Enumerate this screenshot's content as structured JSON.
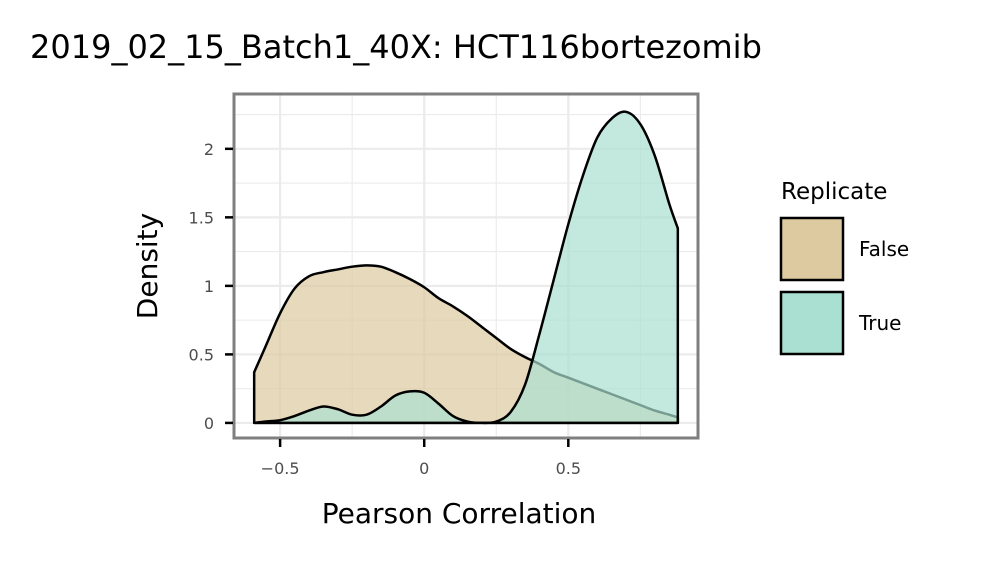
{
  "chart_data": {
    "type": "area",
    "title": "2019_02_15_Batch1_40X: HCT116bortezomib",
    "xlabel": "Pearson Correlation",
    "ylabel": "Density",
    "xlim": [
      -0.66,
      0.95
    ],
    "ylim": [
      -0.11,
      2.4
    ],
    "x_ticks": [
      {
        "value": -0.5,
        "label": "−0.5"
      },
      {
        "value": 0,
        "label": "0"
      },
      {
        "value": 0.5,
        "label": "0.5"
      }
    ],
    "y_ticks": [
      {
        "value": 0,
        "label": "0"
      },
      {
        "value": 0.5,
        "label": "0.5"
      },
      {
        "value": 1,
        "label": "1"
      },
      {
        "value": 1.5,
        "label": "1.5"
      },
      {
        "value": 2,
        "label": "2"
      }
    ],
    "grid": true,
    "legend": {
      "title": "Replicate",
      "position": "right"
    },
    "series": [
      {
        "name": "False",
        "color": "#ddcaa0",
        "opacity": 0.7,
        "x": [
          -0.59,
          -0.55,
          -0.5,
          -0.45,
          -0.4,
          -0.35,
          -0.3,
          -0.25,
          -0.2,
          -0.15,
          -0.1,
          -0.05,
          0,
          0.05,
          0.1,
          0.15,
          0.2,
          0.25,
          0.3,
          0.35,
          0.4,
          0.45,
          0.5,
          0.55,
          0.6,
          0.65,
          0.7,
          0.75,
          0.8,
          0.85,
          0.88
        ],
        "y": [
          0.37,
          0.56,
          0.8,
          0.98,
          1.07,
          1.1,
          1.12,
          1.14,
          1.15,
          1.14,
          1.1,
          1.05,
          0.99,
          0.91,
          0.85,
          0.78,
          0.7,
          0.62,
          0.54,
          0.48,
          0.43,
          0.37,
          0.33,
          0.29,
          0.25,
          0.21,
          0.17,
          0.13,
          0.09,
          0.06,
          0.04
        ]
      },
      {
        "name": "True",
        "color": "#a9e0d2",
        "opacity": 0.7,
        "x": [
          -0.59,
          -0.55,
          -0.5,
          -0.45,
          -0.4,
          -0.35,
          -0.3,
          -0.25,
          -0.2,
          -0.15,
          -0.1,
          -0.05,
          0,
          0.05,
          0.1,
          0.15,
          0.2,
          0.25,
          0.3,
          0.35,
          0.4,
          0.45,
          0.5,
          0.55,
          0.6,
          0.65,
          0.7,
          0.75,
          0.8,
          0.85,
          0.88
        ],
        "y": [
          0.0,
          0.01,
          0.02,
          0.05,
          0.09,
          0.12,
          0.1,
          0.06,
          0.06,
          0.12,
          0.2,
          0.23,
          0.22,
          0.14,
          0.05,
          0.01,
          0.0,
          0.01,
          0.08,
          0.28,
          0.65,
          1.05,
          1.45,
          1.8,
          2.08,
          2.22,
          2.27,
          2.18,
          1.95,
          1.6,
          1.42
        ]
      }
    ]
  }
}
